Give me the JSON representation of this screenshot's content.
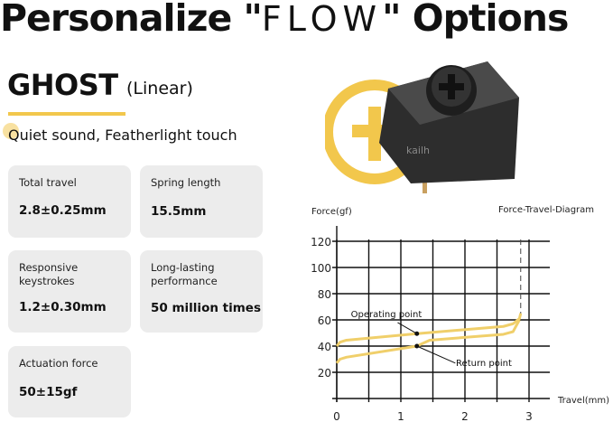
{
  "header": {
    "title_pre": "Personalize \"",
    "title_flow": "FLOW",
    "title_post": "\" Options"
  },
  "product": {
    "name": "GHOST",
    "type": "(Linear)",
    "tagline": "Quiet sound, Featherlight touch",
    "brand_mark": "kailh"
  },
  "accent_color": "#f2c74c",
  "specs": [
    {
      "label": "Total travel",
      "value": "2.8±0.25mm"
    },
    {
      "label": "Spring length",
      "value": "15.5mm"
    },
    {
      "label": "Responsive keystrokes",
      "value": "1.2±0.30mm"
    },
    {
      "label": "Long-lasting performance",
      "value": "50 million times"
    },
    {
      "label": "Actuation force",
      "value": "50±15gf"
    }
  ],
  "chart_data": {
    "type": "line",
    "title": "Force-Travel-Diagram",
    "xlabel": "Travel(mm)",
    "ylabel": "Force(gf)",
    "xlim": [
      0,
      3
    ],
    "ylim": [
      0,
      120
    ],
    "xticks": [
      0,
      1,
      2,
      3
    ],
    "yticks": [
      20,
      40,
      60,
      80,
      100,
      120
    ],
    "grid": true,
    "series": [
      {
        "x": [
          0,
          0.05,
          0.15,
          1.25,
          2.6,
          2.75,
          2.85,
          2.87
        ],
        "y": [
          40,
          43,
          44.5,
          49.5,
          55,
          57,
          61,
          65
        ]
      },
      {
        "x": [
          0,
          0.05,
          0.15,
          1.25,
          1.45,
          2.6,
          2.75,
          2.85
        ],
        "y": [
          27,
          30,
          31.5,
          40,
          44.5,
          49,
          51,
          60
        ]
      }
    ],
    "max_travel_marker": 2.87,
    "annotations": [
      {
        "text": "Operating point",
        "x": 1.25,
        "y": 49.5
      },
      {
        "text": "Return point",
        "x": 1.25,
        "y": 40
      }
    ]
  }
}
